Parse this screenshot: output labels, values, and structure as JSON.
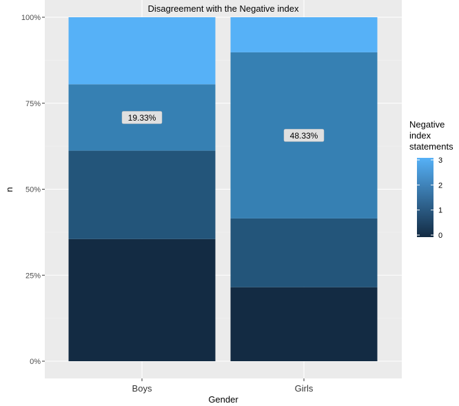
{
  "chart_data": {
    "type": "bar",
    "stacked": true,
    "position": "fill",
    "title": "Disagreement with the Negative index",
    "xlabel": "Gender",
    "ylabel": "n",
    "categories": [
      "Boys",
      "Girls"
    ],
    "y_ticks": [
      "0%",
      "25%",
      "50%",
      "75%",
      "100%"
    ],
    "ylim": [
      0,
      1
    ],
    "grid": true,
    "series": [
      {
        "level": 0,
        "values": [
          0.355,
          0.215
        ],
        "color": "#132B43"
      },
      {
        "level": 1,
        "values": [
          0.257,
          0.2
        ],
        "color": "#23557A"
      },
      {
        "level": 2,
        "values": [
          0.193,
          0.483
        ],
        "color": "#3680B3"
      },
      {
        "level": 3,
        "values": [
          0.195,
          0.102
        ],
        "color": "#56B1F7"
      }
    ],
    "data_labels": [
      {
        "category": "Boys",
        "text": "19.33%",
        "level": 2
      },
      {
        "category": "Girls",
        "text": "48.33%",
        "level": 2
      }
    ],
    "legend": {
      "title_lines": [
        "Negative",
        "index",
        "statements"
      ],
      "labels": [
        "3",
        "2",
        "1",
        "0"
      ],
      "placement": "right",
      "gradient_low": "#132B43",
      "gradient_high": "#56B1F7"
    }
  }
}
